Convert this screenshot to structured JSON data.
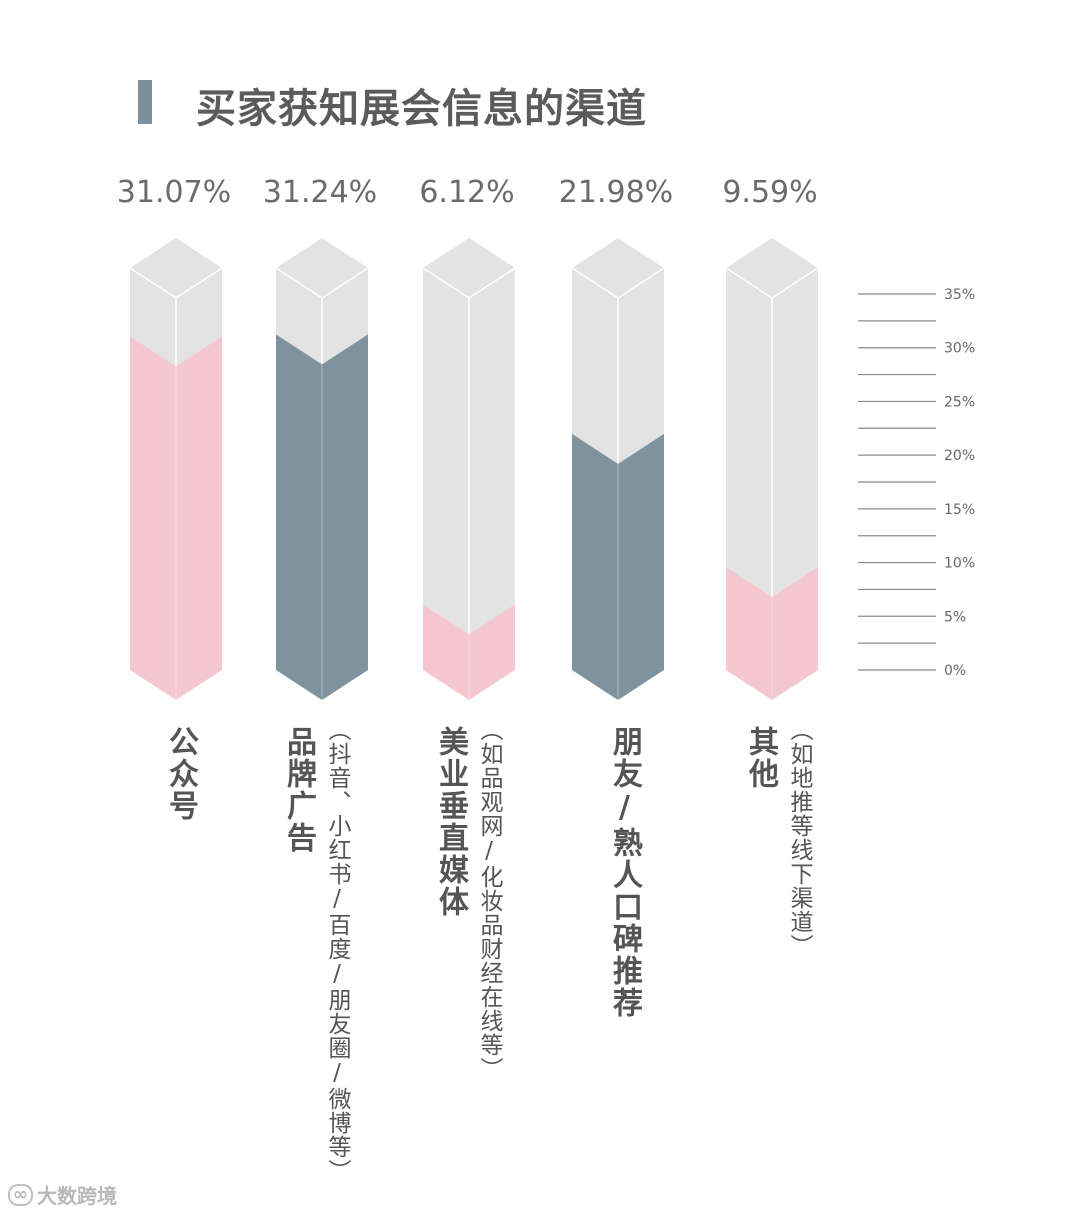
{
  "title": "买家获知展会信息的渠道",
  "chart_data": {
    "type": "bar",
    "title": "买家获知展会信息的渠道",
    "categories": [
      "公众号",
      "品牌广告",
      "美业垂直媒体",
      "朋友/熟人口碑推荐",
      "其他"
    ],
    "subtitles": [
      "",
      "（抖音、小红书/百度/朋友圈/微博等）",
      "（如品观网/化妆品财经在线等）",
      "",
      "（如地推等线下渠道）"
    ],
    "values": [
      31.07,
      31.24,
      6.12,
      21.98,
      9.59
    ],
    "value_labels": [
      "31.07%",
      "31.24%",
      "6.12%",
      "21.98%",
      "9.59%"
    ],
    "bar_colors": [
      "#f5c8d0",
      "#7e939d",
      "#f5c8d0",
      "#7e939d",
      "#f5c8d0"
    ],
    "empty_color": "#e3e3e3",
    "ylim": [
      0,
      35
    ],
    "y_ticks": [
      0,
      5,
      10,
      15,
      20,
      25,
      30,
      35
    ],
    "y_tick_labels": [
      "0%",
      "5%",
      "10%",
      "15%",
      "20%",
      "25%",
      "30%",
      "35%"
    ]
  },
  "watermark": {
    "logo": "∞",
    "text": "大数跨境"
  }
}
